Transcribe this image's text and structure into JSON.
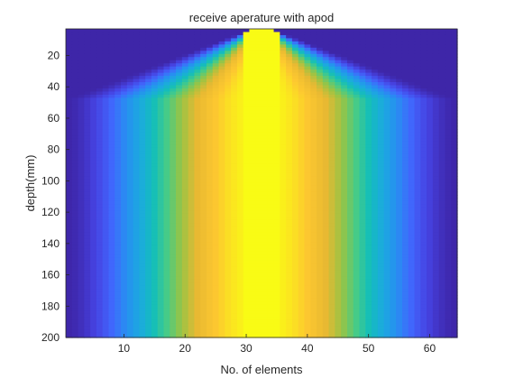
{
  "chart_data": {
    "type": "heatmap",
    "title": "receive aperature with apod",
    "xlabel": "No. of elements",
    "ylabel": "depth(mm)",
    "x_range": [
      0.5,
      64.5
    ],
    "y_range": [
      3,
      200
    ],
    "y_reversed": true,
    "x_ticks": [
      10,
      20,
      30,
      40,
      50,
      60
    ],
    "y_ticks": [
      20,
      40,
      60,
      80,
      100,
      120,
      140,
      160,
      180,
      200
    ],
    "x_tick_labels": [
      "10",
      "20",
      "30",
      "40",
      "50",
      "60"
    ],
    "y_tick_labels": [
      "20",
      "40",
      "60",
      "80",
      "100",
      "120",
      "140",
      "160",
      "180",
      "200"
    ],
    "colormap": "parula",
    "colors": {
      "low": "#3e26a8",
      "mid": "#16c6b0",
      "high": "#f9fb15"
    },
    "elements": 64,
    "center_element": 32.5,
    "aperture_full_depth_mm": 47,
    "profile": "apodization weight peaks at the center element and falls to the minimum at the aperture edges; aperture widens linearly with depth until about 47 mm, then spans all elements",
    "grid": false,
    "legend": "none"
  }
}
